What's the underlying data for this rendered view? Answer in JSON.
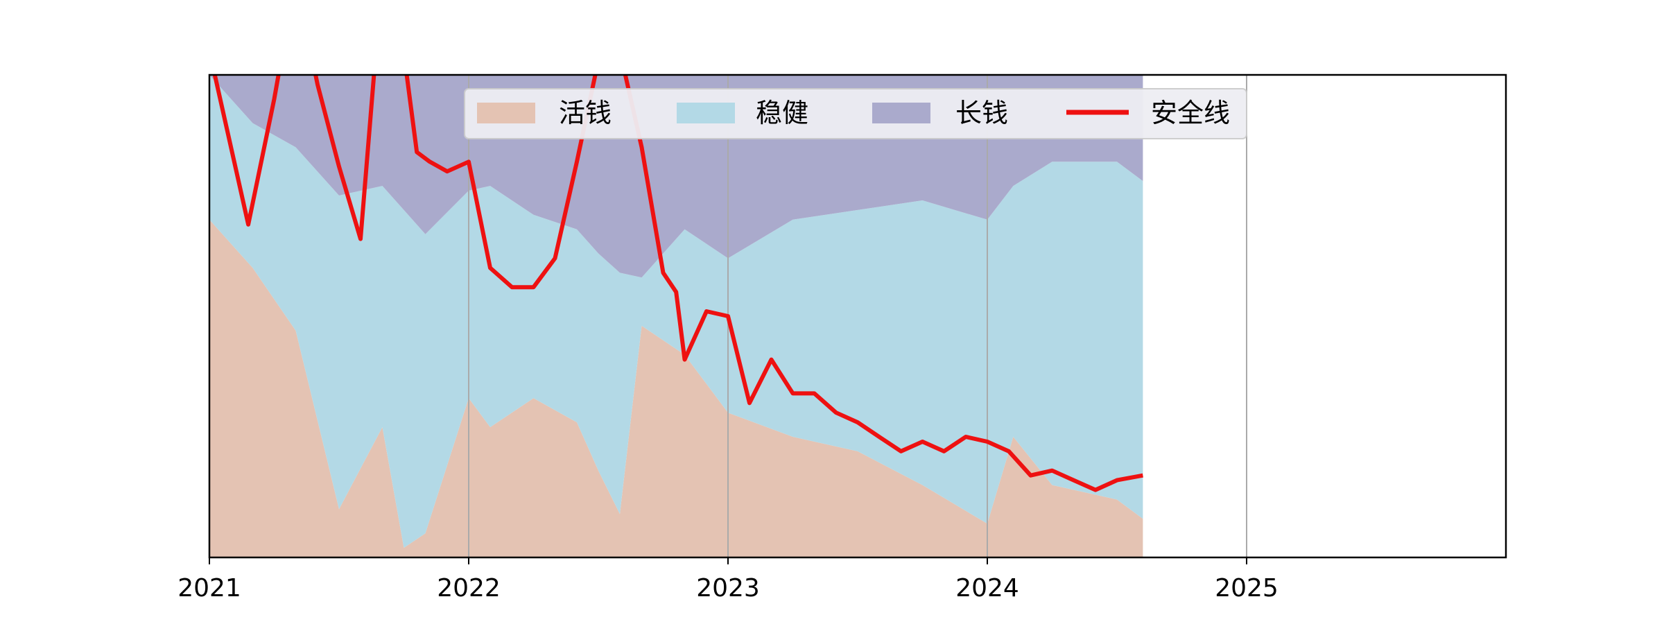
{
  "chart_data": {
    "type": "area",
    "stacked": true,
    "xlim": [
      2021.0,
      2026.0
    ],
    "ylim": [
      0,
      1
    ],
    "grid": "vertical-major",
    "legend": "top-center",
    "tick_labels": [
      "2021",
      "2022",
      "2023",
      "2024",
      "2025"
    ],
    "tick_values": [
      2021,
      2022,
      2023,
      2024,
      2025
    ],
    "colors": {
      "活钱": "#e4c3b3",
      "稳健": "#b3d9e6",
      "长钱": "#aaaacc",
      "安全线": "#ee1111",
      "grid": "#aaaaaa",
      "frame": "#000000",
      "legend_bg": "#eeeef3"
    },
    "x": [
      2021.0,
      2021.167,
      2021.333,
      2021.5,
      2021.667,
      2021.75,
      2021.833,
      2022.0,
      2022.083,
      2022.25,
      2022.417,
      2022.5,
      2022.583,
      2022.667,
      2022.833,
      2023.0,
      2023.25,
      2023.5,
      2023.75,
      2024.0,
      2024.1,
      2024.25,
      2024.5,
      2024.6
    ],
    "series": [
      {
        "name": "活钱",
        "values": [
          0.7,
          0.6,
          0.47,
          0.1,
          0.27,
          0.02,
          0.05,
          0.33,
          0.27,
          0.33,
          0.28,
          0.18,
          0.09,
          0.48,
          0.42,
          0.3,
          0.25,
          0.22,
          0.15,
          0.07,
          0.25,
          0.15,
          0.12,
          0.08
        ]
      },
      {
        "name": "稳健",
        "values": [
          0.3,
          0.3,
          0.38,
          0.65,
          0.5,
          0.7,
          0.62,
          0.43,
          0.5,
          0.38,
          0.4,
          0.45,
          0.5,
          0.1,
          0.26,
          0.32,
          0.45,
          0.5,
          0.59,
          0.63,
          0.52,
          0.67,
          0.7,
          0.7
        ]
      },
      {
        "name": "长钱",
        "values": [
          0.0,
          0.1,
          0.15,
          0.25,
          0.23,
          0.28,
          0.33,
          0.24,
          0.23,
          0.29,
          0.32,
          0.37,
          0.41,
          0.42,
          0.32,
          0.38,
          0.3,
          0.28,
          0.26,
          0.3,
          0.23,
          0.18,
          0.18,
          0.22
        ]
      }
    ],
    "line": {
      "name": "安全线",
      "x": [
        2021.0,
        2021.15,
        2021.25,
        2021.333,
        2021.417,
        2021.5,
        2021.583,
        2021.65,
        2021.7,
        2021.8,
        2021.85,
        2021.917,
        2022.0,
        2022.083,
        2022.167,
        2022.25,
        2022.333,
        2022.417,
        2022.5,
        2022.583,
        2022.667,
        2022.75,
        2022.8,
        2022.833,
        2022.917,
        2023.0,
        2023.083,
        2023.167,
        2023.25,
        2023.333,
        2023.417,
        2023.5,
        2023.583,
        2023.667,
        2023.75,
        2023.833,
        2023.917,
        2024.0,
        2024.083,
        2024.167,
        2024.25,
        2024.333,
        2024.417,
        2024.5,
        2024.6
      ],
      "values": [
        1.05,
        0.69,
        0.95,
        1.2,
        0.98,
        0.81,
        0.66,
        1.1,
        1.25,
        0.84,
        0.82,
        0.8,
        0.82,
        0.6,
        0.56,
        0.56,
        0.62,
        0.82,
        1.03,
        1.05,
        0.85,
        0.59,
        0.55,
        0.41,
        0.51,
        0.5,
        0.32,
        0.41,
        0.34,
        0.34,
        0.3,
        0.28,
        0.25,
        0.22,
        0.24,
        0.22,
        0.25,
        0.24,
        0.22,
        0.17,
        0.18,
        0.16,
        0.14,
        0.16,
        0.17
      ]
    }
  }
}
